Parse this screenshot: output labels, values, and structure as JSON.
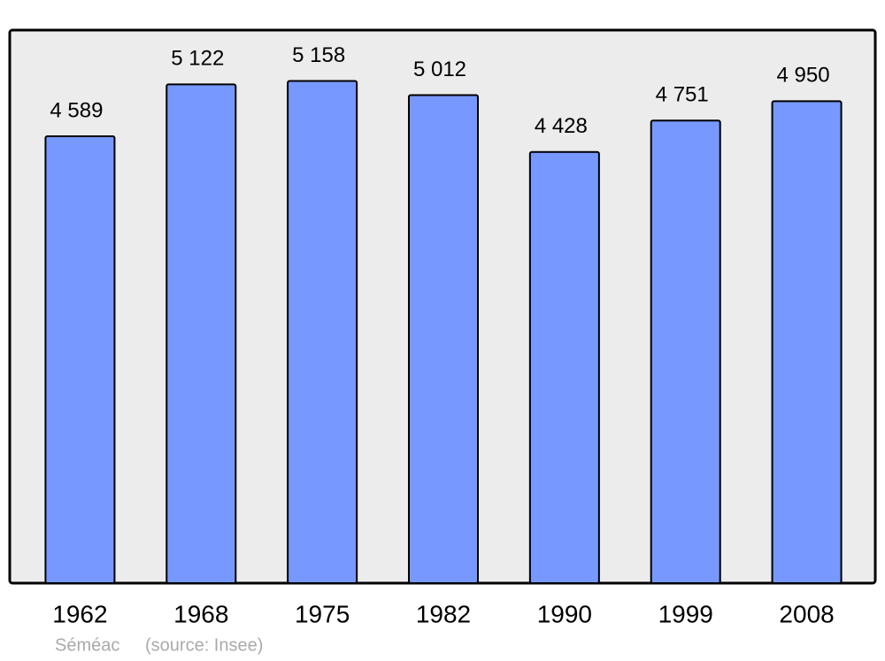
{
  "chart_data": {
    "type": "bar",
    "categories": [
      "1962",
      "1968",
      "1975",
      "1982",
      "1990",
      "1999",
      "2008"
    ],
    "values": [
      4589,
      5122,
      5158,
      5012,
      4428,
      4751,
      4950
    ],
    "value_labels": [
      "4 589",
      "5 122",
      "5 158",
      "5 012",
      "4 428",
      "4 751",
      "4 950"
    ],
    "color": "#7799ff",
    "ylim": [
      0,
      5680
    ],
    "place": "Séméac",
    "source": "(source: Insee)"
  }
}
